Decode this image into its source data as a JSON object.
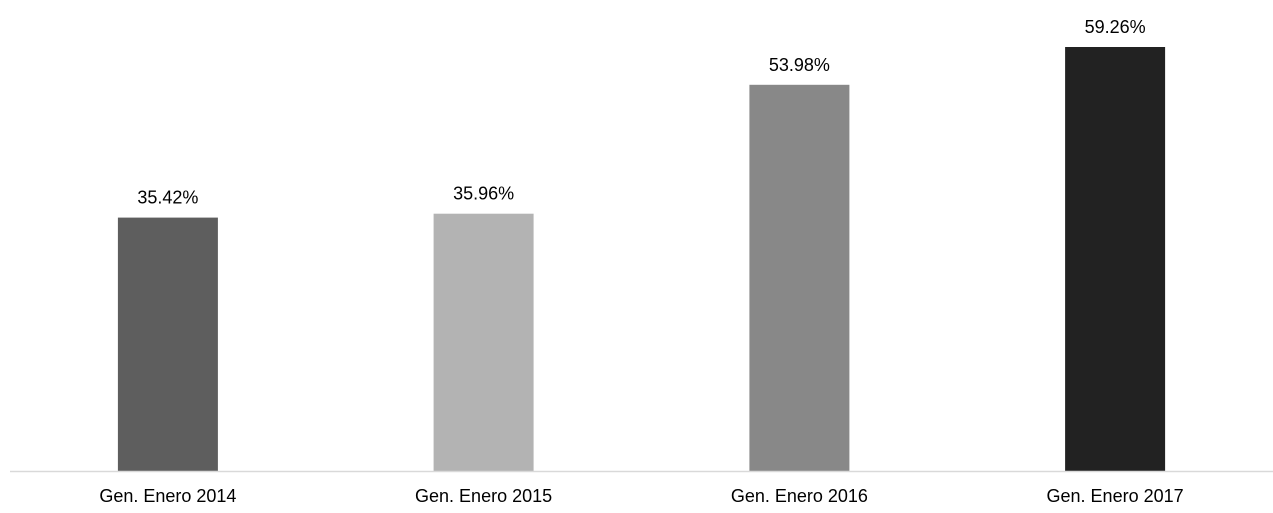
{
  "chart_data": {
    "type": "bar",
    "title": "",
    "xlabel": "",
    "ylabel": "",
    "categories": [
      "Gen. Enero 2014",
      "Gen. Enero 2015",
      "Gen. Enero 2016",
      "Gen. Enero 2017"
    ],
    "values": [
      35.42,
      35.96,
      53.98,
      59.26
    ],
    "value_labels": [
      "35.42%",
      "35.96%",
      "53.98%",
      "59.26%"
    ],
    "unit": "%",
    "bar_colors": [
      "#5e5e5e",
      "#b3b3b3",
      "#888888",
      "#222222"
    ],
    "axis_color": "#d9d9d9",
    "ylim": [
      0,
      62
    ],
    "grid": false,
    "legend": "none"
  }
}
